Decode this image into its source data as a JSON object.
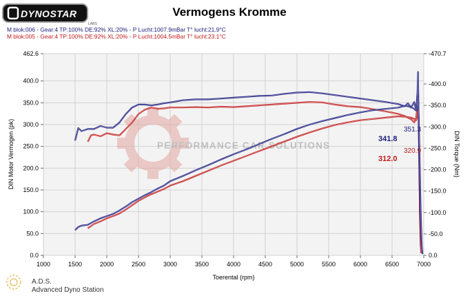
{
  "brand": {
    "logo_text": "DYNOSTAR",
    "logo_sub": "LABS"
  },
  "header": {
    "title": "Vermogens Kromme",
    "run1_label": "M blok:006 - Gear:4 TP:100% DE:92% XL:20%    - P Lucht:1007.9mBar T° lucht:21.9°C",
    "run2_label": "M blok:005 - Gear:4 TP:100% DE:92% XL:20%    - P Lucht:1004.5mBar T° lucht:23.1°C"
  },
  "watermark": {
    "text": "PERFORMANCE CAR SOLUTIONS"
  },
  "footer": {
    "brand_short": "A.D.S.",
    "brand_long": "Advanced Dyno Station"
  },
  "colors": {
    "run1": "#1a1a7a",
    "run2": "#c01818",
    "run1_light": "#7878b8",
    "run2_light": "#dd7c7c",
    "plot_bg": "#f3f3f3"
  },
  "chart_data": {
    "type": "line",
    "title": "Vermogens Kromme",
    "xlabel": "Toerental (rpm)",
    "ylabel": "DIN Motor Vermogen (pk)",
    "y2label": "DIN Torque (Nm)",
    "xlim": [
      1000,
      7000
    ],
    "ylim": [
      0,
      462.6
    ],
    "y2lim": [
      0,
      470.7
    ],
    "x_ticks": [
      "1000",
      "1500",
      "2000",
      "2500",
      "3000",
      "3500",
      "4000",
      "4500",
      "5000",
      "5500",
      "6000",
      "6500",
      "7000"
    ],
    "y_ticks": [
      "0.0",
      "50.0",
      "100.0",
      "150.0",
      "200.0",
      "250.0",
      "300.0",
      "350.0",
      "400.0",
      "462.6"
    ],
    "y2_ticks": [
      "0.0",
      "-50.0",
      "-100.0",
      "-150.0",
      "-200.0",
      "-250.0",
      "-300.0",
      "-350.0",
      "-400.0",
      "-470.7"
    ],
    "grid": true,
    "annotations": [
      {
        "text": "341.8",
        "series": "run1"
      },
      {
        "text": "312.0",
        "series": "run2"
      },
      {
        "text": "351.3",
        "series": "run1"
      },
      {
        "text": "320.9",
        "series": "run2"
      }
    ],
    "series": [
      {
        "id": "run1_power",
        "axis": "left",
        "color": "run1",
        "x": [
          1500,
          1550,
          1600,
          1700,
          1800,
          1900,
          2000,
          2100,
          2200,
          2300,
          2400,
          2500,
          2600,
          2700,
          2800,
          2900,
          3000,
          3200,
          3400,
          3600,
          3800,
          4000,
          4200,
          4400,
          4600,
          4800,
          5000,
          5200,
          5400,
          5600,
          5800,
          6000,
          6200,
          6400,
          6600,
          6700,
          6750,
          6800,
          6850,
          6870,
          6890,
          6900,
          6910,
          6920,
          6930,
          6940,
          6950,
          6960,
          6970,
          6980
        ],
        "values": [
          58,
          65,
          68,
          70,
          78,
          85,
          90,
          95,
          103,
          112,
          122,
          130,
          138,
          145,
          153,
          160,
          170,
          182,
          195,
          207,
          220,
          232,
          243,
          255,
          267,
          278,
          290,
          300,
          308,
          315,
          322,
          328,
          333,
          336,
          339,
          343,
          342,
          340,
          336,
          333,
          335,
          345,
          365,
          320,
          250,
          180,
          110,
          60,
          20,
          3
        ]
      },
      {
        "id": "run2_power",
        "axis": "left",
        "color": "run2",
        "x": [
          1700,
          1800,
          1900,
          2000,
          2100,
          2200,
          2300,
          2400,
          2500,
          2600,
          2700,
          2800,
          2900,
          3000,
          3200,
          3400,
          3600,
          3800,
          4000,
          4200,
          4400,
          4600,
          4800,
          5000,
          5200,
          5400,
          5600,
          5800,
          6000,
          6200,
          6400,
          6600,
          6700,
          6800,
          6850,
          6880,
          6900,
          6910,
          6920,
          6930,
          6940,
          6950,
          6960
        ],
        "values": [
          62,
          72,
          78,
          85,
          90,
          96,
          105,
          115,
          125,
          133,
          140,
          146,
          152,
          160,
          170,
          182,
          194,
          206,
          217,
          228,
          239,
          250,
          261,
          272,
          282,
          291,
          299,
          305,
          310,
          313,
          316,
          319,
          318,
          316,
          313,
          310,
          318,
          350,
          320,
          240,
          150,
          60,
          5
        ]
      },
      {
        "id": "run1_torque",
        "axis": "right",
        "color": "run1",
        "x": [
          1500,
          1550,
          1600,
          1700,
          1800,
          1900,
          2000,
          2100,
          2200,
          2300,
          2400,
          2500,
          2600,
          2700,
          2800,
          2900,
          3000,
          3200,
          3400,
          3600,
          3800,
          4000,
          4200,
          4400,
          4600,
          4800,
          5000,
          5200,
          5400,
          5600,
          5800,
          6000,
          6200,
          6400,
          6600,
          6700,
          6750,
          6800,
          6850,
          6880,
          6900,
          6910,
          6920,
          6930,
          6940,
          6950,
          6960,
          6970
        ],
        "values": [
          268,
          297,
          290,
          295,
          295,
          302,
          298,
          298,
          310,
          330,
          345,
          352,
          352,
          350,
          352,
          355,
          357,
          362,
          364,
          364,
          366,
          368,
          370,
          372,
          373,
          377,
          380,
          381,
          378,
          374,
          370,
          366,
          362,
          358,
          353,
          348,
          355,
          345,
          358,
          338,
          380,
          428,
          310,
          200,
          100,
          40,
          15,
          5
        ]
      },
      {
        "id": "run2_torque",
        "axis": "right",
        "color": "run2",
        "x": [
          1700,
          1750,
          1800,
          1900,
          2000,
          2100,
          2200,
          2300,
          2400,
          2500,
          2600,
          2700,
          2800,
          2900,
          3000,
          3200,
          3400,
          3600,
          3800,
          4000,
          4200,
          4400,
          4600,
          4800,
          5000,
          5200,
          5400,
          5600,
          5800,
          6000,
          6200,
          6400,
          6600,
          6700,
          6800,
          6850,
          6880,
          6900,
          6910,
          6920,
          6930,
          6940,
          6950,
          6960
        ],
        "values": [
          265,
          280,
          282,
          278,
          285,
          282,
          280,
          295,
          310,
          330,
          340,
          345,
          342,
          343,
          345,
          345,
          346,
          345,
          347,
          346,
          348,
          350,
          352,
          354,
          356,
          358,
          357,
          352,
          348,
          346,
          341,
          336,
          330,
          325,
          318,
          310,
          322,
          348,
          365,
          315,
          200,
          90,
          25,
          5
        ]
      }
    ]
  }
}
